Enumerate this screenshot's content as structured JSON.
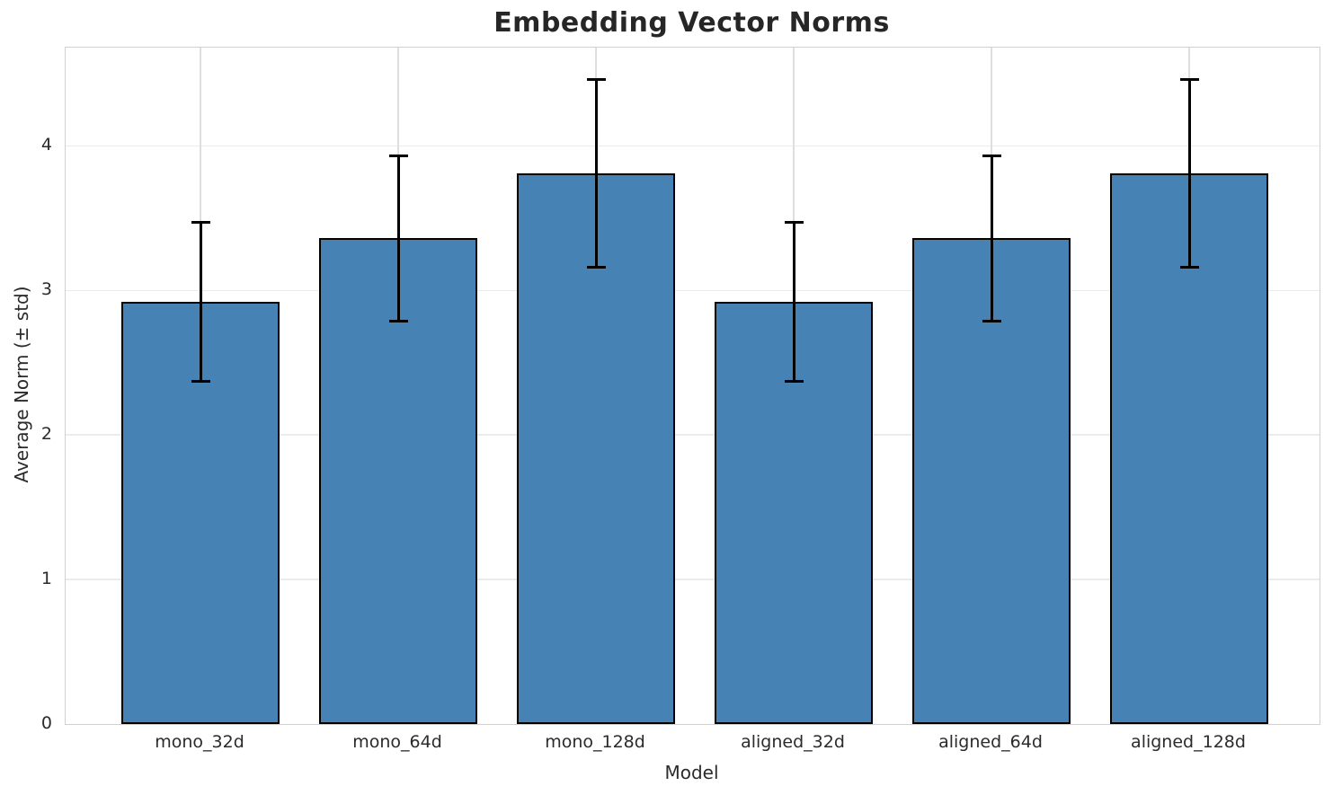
{
  "chart_data": {
    "type": "bar",
    "title": "Embedding Vector Norms",
    "xlabel": "Model",
    "ylabel": "Average Norm (± std)",
    "categories": [
      "mono_32d",
      "mono_64d",
      "mono_128d",
      "aligned_32d",
      "aligned_64d",
      "aligned_128d"
    ],
    "values": [
      2.92,
      3.36,
      3.81,
      2.92,
      3.36,
      3.81
    ],
    "errors": [
      0.55,
      0.57,
      0.65,
      0.55,
      0.57,
      0.65
    ],
    "error_style": "plus-minus-std with caps",
    "yticks": [
      0,
      1,
      2,
      3,
      4
    ],
    "ylim": [
      0,
      4.68
    ],
    "grid": true,
    "legend": "none",
    "bar_color": "#4682b4",
    "bar_edge_color": "#000000",
    "error_color": "#000000",
    "grid_color": "#ebebeb",
    "spine_color": "#d0d0d0",
    "title_color": "#262626",
    "text_color": "#2b2b2b"
  }
}
